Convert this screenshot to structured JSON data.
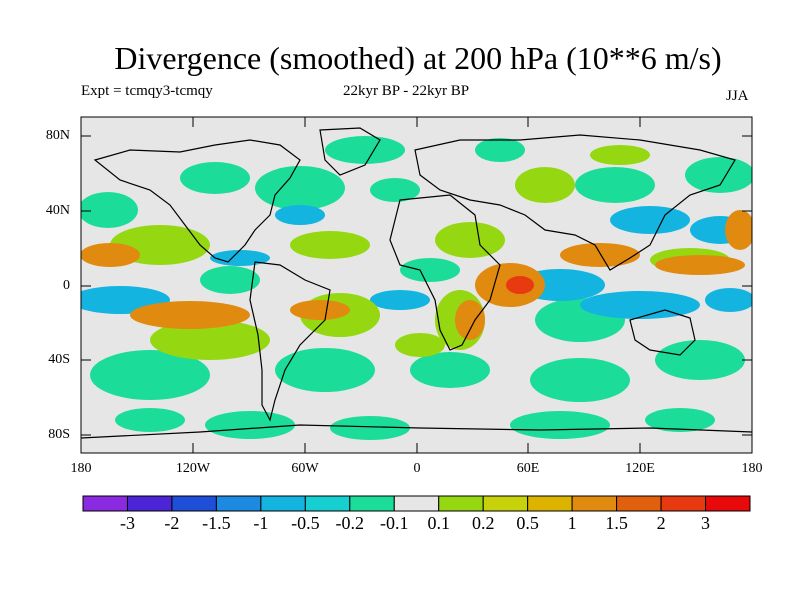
{
  "title": "Divergence (smoothed) at 200 hPa (10**6 m/s)",
  "experiment": "Expt = tcmqy3-tcmqy",
  "period": "22kyr BP - 22kyr BP",
  "season": "JJA",
  "y_axis_labels": [
    "80N",
    "40N",
    "0",
    "40S",
    "80S"
  ],
  "x_axis_labels": [
    "180",
    "120W",
    "60W",
    "0",
    "60E",
    "120E",
    "180"
  ],
  "colorbar": {
    "labels": [
      "-3",
      "-2",
      "-1.5",
      "-1",
      "-0.5",
      "-0.2",
      "-0.1",
      "0.1",
      "0.2",
      "0.5",
      "1",
      "1.5",
      "2",
      "3"
    ],
    "colors": [
      "#8a2be2",
      "#4b25d6",
      "#1f4fd8",
      "#1b8ae0",
      "#13b4e0",
      "#16cfd0",
      "#1cdc9a",
      "#e6e6e6",
      "#95d811",
      "#c8d20a",
      "#dcb400",
      "#e08a10",
      "#e0600e",
      "#e83a10",
      "#e80a0a"
    ]
  },
  "map_colors": {
    "background": "#e6e6e6",
    "neg_weak": "#1cdc9a",
    "neg_mid": "#16cfd0",
    "neg_strong": "#13b4e0",
    "neg_stronger": "#1b8ae0",
    "pos_weak": "#95d811",
    "pos_mid": "#c8d20a",
    "pos_strong": "#dcb400",
    "pos_stronger": "#e08a10",
    "pos_max": "#e83a10"
  }
}
